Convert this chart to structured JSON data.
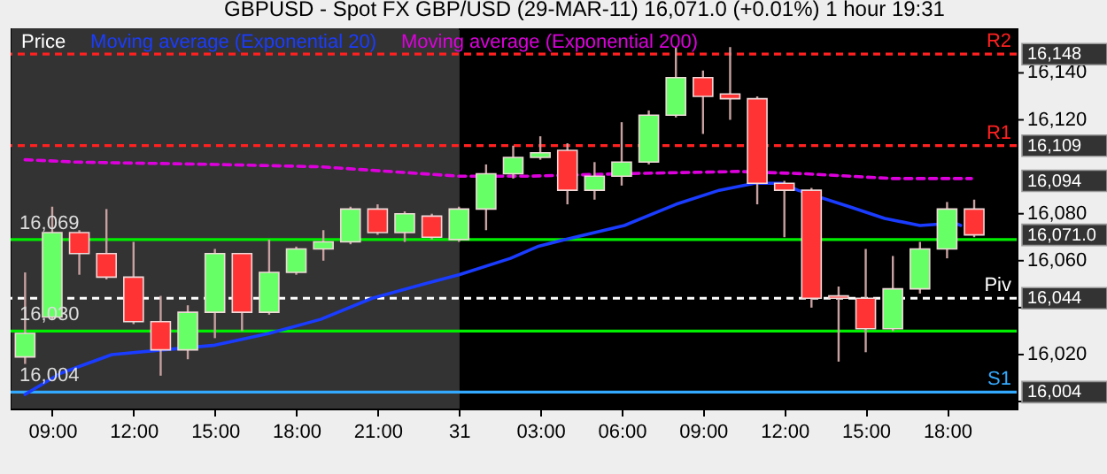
{
  "chart_data": {
    "type": "candlestick",
    "title": "GBPUSD - Spot FX GBP/USD (29-MAR-11)    16,071.0 (+0.01%)    1 hour  19:31",
    "legend_title": "Price",
    "xlim": [
      "--03-30T07:28",
      "--03-31T20:34"
    ],
    "xticks": [
      {
        "value": "--03-30T09:00",
        "label": "09:00"
      },
      {
        "value": "--03-30T12:00",
        "label": "12:00"
      },
      {
        "value": "--03-30T15:00",
        "label": "15:00"
      },
      {
        "value": "--03-30T18:00",
        "label": "18:00"
      },
      {
        "value": "--03-30T21:00",
        "label": "21:00"
      },
      {
        "value": "--03-31T00:00",
        "label": "31"
      },
      {
        "value": "--03-31T03:00",
        "label": "03:00"
      },
      {
        "value": "--03-31T06:00",
        "label": "06:00"
      },
      {
        "value": "--03-31T09:00",
        "label": "09:00"
      },
      {
        "value": "--03-31T12:00",
        "label": "12:00"
      },
      {
        "value": "--03-31T15:00",
        "label": "15:00"
      },
      {
        "value": "--03-31T18:00",
        "label": "18:00"
      }
    ],
    "ylim": [
      15997,
      16159
    ],
    "yticks": [
      {
        "value": 16000,
        "label": null
      },
      {
        "value": 16020,
        "label": "16,020"
      },
      {
        "value": 16040,
        "label": null
      },
      {
        "value": 16060,
        "label": "16,060"
      },
      {
        "value": 16080,
        "label": "16,080"
      },
      {
        "value": 16120,
        "label": "16,120"
      },
      {
        "value": 16140,
        "label": "16,140"
      }
    ],
    "y2lim": [
      15997,
      16159
    ],
    "y2ticks": [
      {
        "value": 16148,
        "label": "16,148"
      },
      {
        "value": 16109,
        "label": "16,109"
      },
      {
        "value": 16094,
        "label": "16,094"
      },
      {
        "value": 16071,
        "label": "16,071.0"
      },
      {
        "value": 16044,
        "label": "16,044"
      },
      {
        "value": 16004,
        "label": "16,004"
      }
    ],
    "legend": "top left",
    "series": [
      {
        "x": [
          "--03-30T08:00",
          "--03-30T09:00",
          "--03-30T10:00",
          "--03-30T11:00",
          "--03-30T12:00",
          "--03-30T13:00",
          "--03-30T14:00",
          "--03-30T15:00",
          "--03-30T16:00",
          "--03-30T17:00",
          "--03-30T18:00",
          "--03-30T19:00",
          "--03-30T20:00",
          "--03-30T21:00",
          "--03-30T22:00",
          "--03-30T23:00",
          "--03-31T00:00",
          "--03-31T01:00",
          "--03-31T02:00",
          "--03-31T03:00",
          "--03-31T04:00",
          "--03-31T05:00",
          "--03-31T06:00",
          "--03-31T07:00",
          "--03-31T08:00",
          "--03-31T09:00",
          "--03-31T10:00",
          "--03-31T11:00",
          "--03-31T12:00",
          "--03-31T13:00",
          "--03-31T14:00",
          "--03-31T15:00",
          "--03-31T16:00",
          "--03-31T17:00",
          "--03-31T18:00",
          "--03-31T19:00"
        ],
        "ohlc": [
          [
            16019,
            16055,
            16016,
            16029
          ],
          [
            16036,
            16083,
            16035,
            16072
          ],
          [
            16072,
            16073,
            16054,
            16063
          ],
          [
            16063,
            16082,
            16052,
            16053
          ],
          [
            16053,
            16068,
            16033,
            16034
          ],
          [
            16034,
            16045,
            16011,
            16022
          ],
          [
            16022,
            16041,
            16018,
            16038
          ],
          [
            16038,
            16065,
            16027,
            16063
          ],
          [
            16063,
            16063,
            16030,
            16038
          ],
          [
            16038,
            16069,
            16037,
            16055
          ],
          [
            16055,
            16066,
            16054,
            16065
          ],
          [
            16065,
            16073,
            16060,
            16068
          ],
          [
            16068,
            16083,
            16067,
            16082
          ],
          [
            16082,
            16084,
            16071,
            16072
          ],
          [
            16072,
            16081,
            16068,
            16080
          ],
          [
            16079,
            16080,
            16069,
            16070
          ],
          [
            16069,
            16083,
            16068,
            16082
          ],
          [
            16082,
            16101,
            16073,
            16097
          ],
          [
            16097,
            16109,
            16095,
            16104
          ],
          [
            16104,
            16113,
            16103,
            16106
          ],
          [
            16107,
            16110,
            16084,
            16090
          ],
          [
            16090,
            16102,
            16086,
            16096
          ],
          [
            16096,
            16119,
            16092,
            16102
          ],
          [
            16102,
            16124,
            16101,
            16122
          ],
          [
            16122,
            16151,
            16121,
            16138
          ],
          [
            16138,
            16141,
            16114,
            16130
          ],
          [
            16131,
            16151,
            16120,
            16129
          ],
          [
            16129,
            16130,
            16084,
            16093
          ],
          [
            16093,
            16094,
            16070,
            16090
          ],
          [
            16090,
            16091,
            16040,
            16044
          ],
          [
            16045,
            16049,
            16017,
            16044
          ],
          [
            16044,
            16065,
            16021,
            16031
          ],
          [
            16031,
            16062,
            16030,
            16048
          ],
          [
            16048,
            16068,
            16046,
            16065
          ],
          [
            16065,
            16085,
            16061,
            16082
          ],
          [
            16082,
            16086,
            16070,
            16071
          ]
        ],
        "colors": [
          "#66ff66",
          "#66ff66",
          "#ff3333",
          "#ff3333",
          "#ff3333",
          "#ff3333",
          "#66ff66",
          "#66ff66",
          "#ff3333",
          "#66ff66",
          "#66ff66",
          "#66ff66",
          "#66ff66",
          "#ff3333",
          "#66ff66",
          "#ff3333",
          "#66ff66",
          "#66ff66",
          "#66ff66",
          "#66ff66",
          "#ff3333",
          "#66ff66",
          "#66ff66",
          "#66ff66",
          "#66ff66",
          "#ff3333",
          "#ff3333",
          "#ff3333",
          "#ff3333",
          "#ff3333",
          "#ff3333",
          "#ff3333",
          "#66ff66",
          "#66ff66",
          "#66ff66",
          "#ff3333"
        ]
      },
      {
        "name": "Moving average (Exponential 20)",
        "type": "line",
        "color": "#1a3cff",
        "line_style": "solid",
        "x": [
          "--03-30T08:00",
          "--03-30T09:18",
          "--03-30T11:12",
          "--03-30T13:06",
          "--03-30T15:00",
          "--03-30T17:00",
          "--03-30T18:54",
          "--03-30T20:48",
          "--03-30T22:42",
          "--03-31T00:00",
          "--03-31T01:54",
          "--03-31T02:54",
          "--03-31T03:54",
          "--03-31T06:06",
          "--03-31T08:00",
          "--03-31T09:36",
          "--03-31T10:54",
          "--03-31T11:54",
          "--03-31T12:30",
          "--03-31T14:24",
          "--03-31T15:42",
          "--03-31T17:00",
          "--03-31T18:18",
          "--03-31T18:30"
        ],
        "values": [
          16003,
          16012,
          16020,
          16022,
          16024,
          16029,
          16035,
          16044,
          16050,
          16054,
          16061,
          16066,
          16069,
          16075,
          16084,
          16090,
          16093,
          16093,
          16090,
          16083,
          16078,
          16075,
          16076,
          16075
        ]
      },
      {
        "name": "Moving average (Exponential 200)",
        "type": "line",
        "color": "#dd00dd",
        "line_style": "dashed",
        "x": [
          "--03-30T08:00",
          "--03-30T09:54",
          "--03-30T15:00",
          "--03-30T18:54",
          "--03-31T00:00",
          "--03-31T02:36",
          "--03-31T05:48",
          "--03-31T10:18",
          "--03-31T12:48",
          "--03-31T16:00",
          "--03-31T18:54"
        ],
        "values": [
          16103,
          16102,
          16101,
          16100,
          16096,
          16096,
          16097,
          16098,
          16097,
          16095,
          16095
        ]
      }
    ],
    "bands": [
      {
        "axis": "x",
        "from": "--03-30T07:30",
        "to": "--03-31T00:00",
        "color": "#333333"
      },
      {
        "axis": "x",
        "from": "--03-31T00:00",
        "to": "--03-31T20:36",
        "color": "#000000"
      }
    ],
    "ref_lines": [
      {
        "axis": "y",
        "value": 16148,
        "label": "R2",
        "color": "#ff2020",
        "line_style": "dashed"
      },
      {
        "axis": "y",
        "value": 16109,
        "label": "R1",
        "color": "#ff2020",
        "line_style": "dashed"
      },
      {
        "axis": "y",
        "value": 16044,
        "label": "Piv",
        "color": "#ffffff",
        "line_style": "dashed"
      },
      {
        "axis": "y",
        "value": 16004,
        "label": "S1",
        "color": "#33aaff",
        "line_style": "solid"
      },
      {
        "axis": "y",
        "value": 16069,
        "color": "#00ee00",
        "line_style": "solid"
      },
      {
        "axis": "y",
        "value": 16030,
        "color": "#00ee00",
        "line_style": "solid"
      }
    ],
    "annotations": [
      {
        "text": "16,069",
        "x": "--03-30T07:36",
        "y": 16069
      },
      {
        "text": "16,030",
        "x": "--03-30T07:36",
        "y": 16030
      },
      {
        "text": "16,004",
        "x": "--03-30T07:36",
        "y": 16004
      }
    ]
  }
}
